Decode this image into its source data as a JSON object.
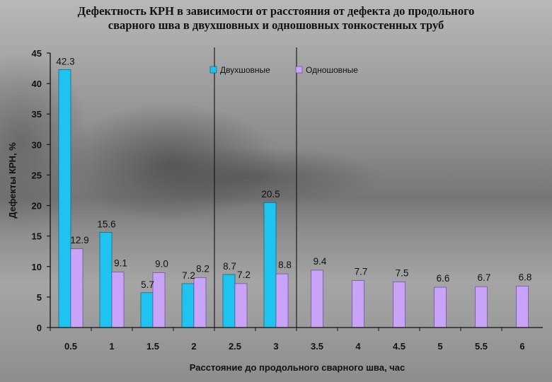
{
  "chart_data": {
    "type": "bar",
    "title": "Дефектность КРН  в зависимости от расстояния от дефекта до продольного\nсварного шва в двухшовных и одношовных  тонкостенных труб",
    "xlabel": "Расстояние до продольного сварного шва, час",
    "ylabel": "Дефекты КРН, %",
    "ylim": [
      0,
      45
    ],
    "yticks": [
      0,
      5,
      10,
      15,
      20,
      25,
      30,
      35,
      40,
      45
    ],
    "categories": [
      "0.5",
      "1",
      "1.5",
      "2",
      "2.5",
      "3",
      "3.5",
      "4",
      "4.5",
      "5",
      "5.5",
      "6"
    ],
    "series": [
      {
        "name": "Двухшовные",
        "color": "#1fc3f0",
        "values": [
          42.3,
          15.6,
          5.7,
          7.2,
          8.7,
          20.5,
          null,
          null,
          null,
          null,
          null,
          null
        ],
        "labels": [
          "42.3",
          "15.6",
          "5.7",
          "7.2",
          "8.7",
          "20.5",
          "",
          "",
          "",
          "",
          "",
          ""
        ]
      },
      {
        "name": "Одношовные",
        "color": "#c9a3f7",
        "values": [
          12.9,
          9.1,
          9.0,
          8.2,
          7.2,
          8.8,
          9.4,
          7.7,
          7.5,
          6.6,
          6.7,
          6.8
        ],
        "labels": [
          "12.9",
          "9.1",
          "9.0",
          "8.2",
          "7.2",
          "8.8",
          "9.4",
          "7.7",
          "7.5",
          "6.6",
          "6.7",
          "6.8"
        ]
      }
    ],
    "grid": false,
    "legend_position": "top-center",
    "separator_lines_after_categories": [
      "2",
      "3"
    ]
  }
}
